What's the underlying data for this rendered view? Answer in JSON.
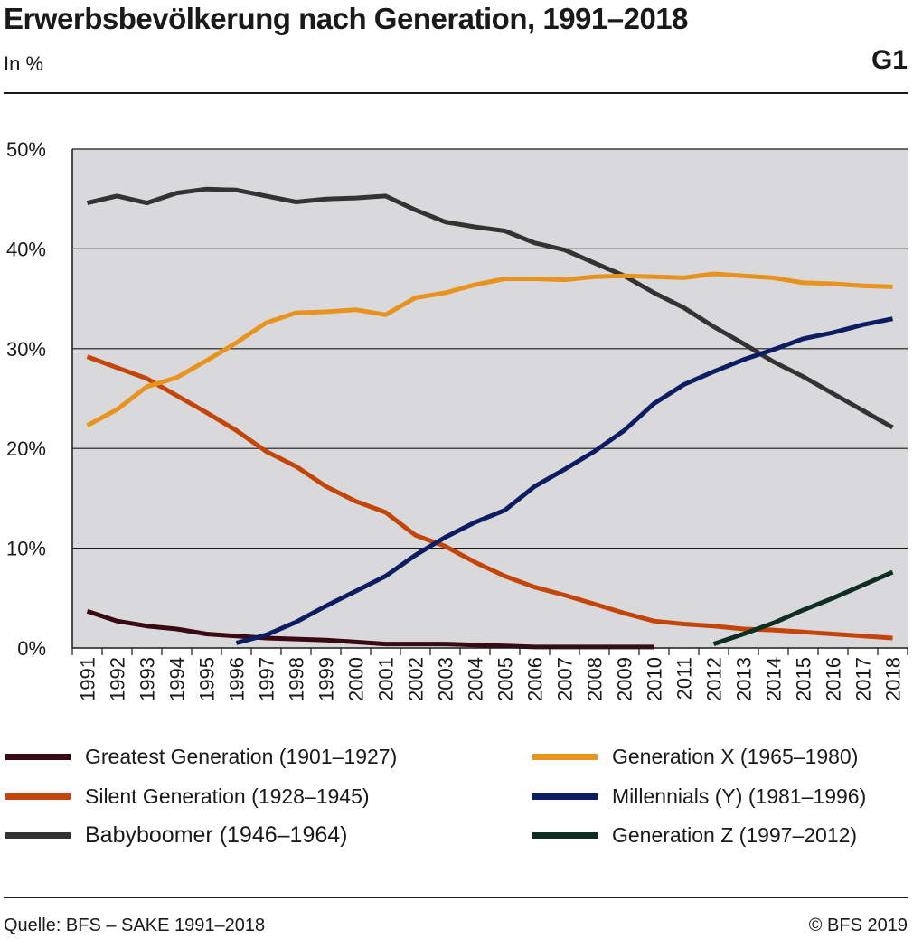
{
  "header": {
    "title": "Erwerbsbevölkerung nach Generation, 1991–2018",
    "unit": "In %",
    "figure_number": "G1"
  },
  "footer": {
    "source": "Quelle: BFS – SAKE 1991–2018",
    "copyright": "© BFS 2019"
  },
  "chart_data": {
    "type": "line",
    "title": "Erwerbsbevölkerung nach Generation, 1991–2018",
    "subtitle": "In %",
    "xlabel": "",
    "ylabel": "",
    "x": [
      1991,
      1992,
      1993,
      1994,
      1995,
      1996,
      1997,
      1998,
      1999,
      2000,
      2001,
      2002,
      2003,
      2004,
      2005,
      2006,
      2007,
      2008,
      2009,
      2010,
      2011,
      2012,
      2013,
      2014,
      2015,
      2016,
      2017,
      2018
    ],
    "ylim": [
      0,
      50
    ],
    "yticks": [
      0,
      10,
      20,
      30,
      40,
      50
    ],
    "ytick_labels": [
      "0%",
      "10%",
      "20%",
      "30%",
      "40%",
      "50%"
    ],
    "grid": "horizontal",
    "plot_background": "#d9d9db",
    "legend_position": "bottom",
    "series": [
      {
        "name": "Greatest Generation (1901–1927)",
        "color": "#3a0a12",
        "values": [
          3.7,
          2.7,
          2.2,
          1.9,
          1.4,
          1.2,
          1.0,
          0.9,
          0.8,
          0.6,
          0.4,
          0.4,
          0.4,
          0.3,
          0.2,
          0.1,
          0.1,
          0.1,
          0.1,
          0.1,
          null,
          null,
          null,
          null,
          null,
          null,
          null,
          null
        ]
      },
      {
        "name": "Silent Generation (1928–1945)",
        "color": "#c4450a",
        "values": [
          29.2,
          28.1,
          27.0,
          25.3,
          23.6,
          21.8,
          19.7,
          18.2,
          16.2,
          14.7,
          13.6,
          11.3,
          10.2,
          8.6,
          7.2,
          6.1,
          5.3,
          4.4,
          3.5,
          2.7,
          2.4,
          2.2,
          1.9,
          1.8,
          1.6,
          1.4,
          1.2,
          1.0
        ]
      },
      {
        "name": "Babyboomer (1946–1964)",
        "color": "#333333",
        "values": [
          44.6,
          45.3,
          44.6,
          45.6,
          46.0,
          45.9,
          45.3,
          44.7,
          45.0,
          45.1,
          45.3,
          43.9,
          42.7,
          42.2,
          41.8,
          40.6,
          39.9,
          38.6,
          37.3,
          35.6,
          34.1,
          32.2,
          30.5,
          28.7,
          27.2,
          25.5,
          23.8,
          22.1
        ]
      },
      {
        "name": "Generation X (1965–1980)",
        "color": "#e8931e",
        "values": [
          22.3,
          23.9,
          26.2,
          27.1,
          28.8,
          30.6,
          32.6,
          33.6,
          33.7,
          33.9,
          33.4,
          35.1,
          35.6,
          36.4,
          37.0,
          37.0,
          36.9,
          37.2,
          37.3,
          37.2,
          37.1,
          37.5,
          37.3,
          37.1,
          36.6,
          36.5,
          36.3,
          36.2
        ]
      },
      {
        "name": "Millennials (Y) (1981–1996)",
        "color": "#0d1d63",
        "values": [
          null,
          null,
          null,
          null,
          null,
          0.5,
          1.3,
          2.6,
          4.2,
          5.7,
          7.2,
          9.3,
          11.1,
          12.6,
          13.8,
          16.2,
          17.9,
          19.7,
          21.8,
          24.5,
          26.4,
          27.7,
          28.9,
          29.9,
          31.0,
          31.6,
          32.4,
          33.0
        ]
      },
      {
        "name": "Generation Z (1997–2012)",
        "color": "#0e2e22",
        "values": [
          null,
          null,
          null,
          null,
          null,
          null,
          null,
          null,
          null,
          null,
          null,
          null,
          null,
          null,
          null,
          null,
          null,
          null,
          null,
          null,
          null,
          0.4,
          1.4,
          2.5,
          3.8,
          5.0,
          6.3,
          7.6
        ]
      }
    ]
  }
}
